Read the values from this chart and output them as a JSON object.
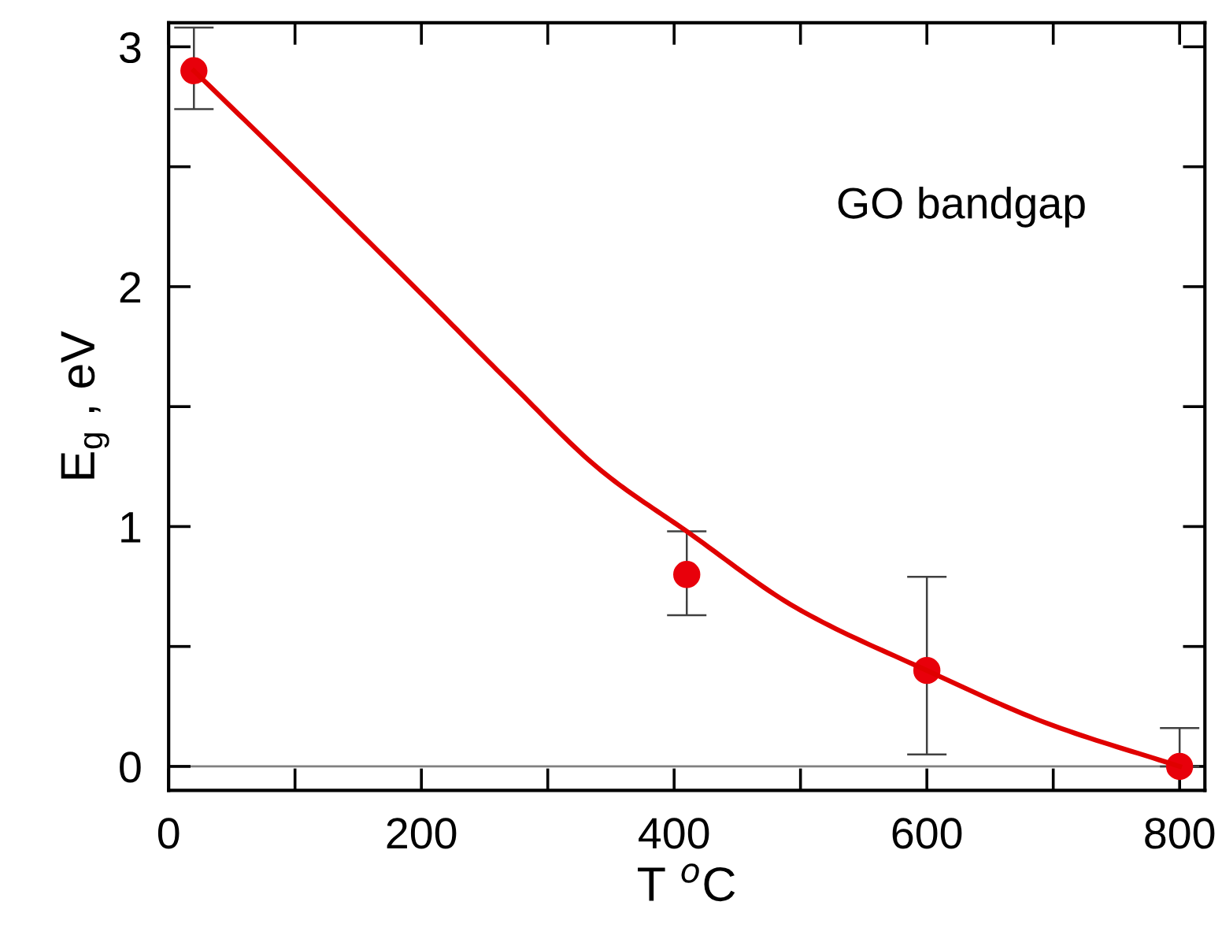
{
  "chart_data": {
    "type": "scatter",
    "xlabel": "T $^{o}$C",
    "ylabel": "E$_{g}$ , eV",
    "annotations": [
      "GO bandgap"
    ],
    "xlim": [
      0,
      820
    ],
    "ylim": [
      -0.1,
      3.1
    ],
    "xticks": [
      0,
      {
        "value": 100,
        "label": null
      },
      200,
      {
        "value": 300,
        "label": null
      },
      400,
      {
        "value": 500,
        "label": null
      },
      600,
      {
        "value": 700,
        "label": null
      },
      800
    ],
    "yticks": [
      0,
      {
        "value": 0.5,
        "label": null
      },
      1,
      {
        "value": 1.5,
        "label": null
      },
      2,
      {
        "value": 2.5,
        "label": null
      },
      3
    ],
    "grid": false,
    "ref_lines": [
      {
        "axis": "y",
        "value": 0,
        "color": "#808080"
      }
    ],
    "series": [
      {
        "marker": "circle",
        "color": "#e8000b",
        "x": [
          20,
          410,
          600,
          800
        ],
        "values": [
          2.9,
          0.8,
          0.4,
          0.0
        ],
        "errors": [
          [
            2.74,
            3.08
          ],
          [
            0.63,
            0.98
          ],
          [
            0.05,
            0.79
          ],
          [
            0.0,
            0.16
          ]
        ]
      },
      {
        "type": "line",
        "marker": "none",
        "color": "#e00000",
        "line_style": "solid",
        "x": [
          20,
          100,
          200,
          270,
          343,
          410,
          497,
          600,
          695,
          800
        ],
        "values": [
          2.9,
          2.49,
          1.97,
          1.6,
          1.23,
          0.98,
          0.66,
          0.4,
          0.18,
          0.0
        ]
      }
    ]
  }
}
